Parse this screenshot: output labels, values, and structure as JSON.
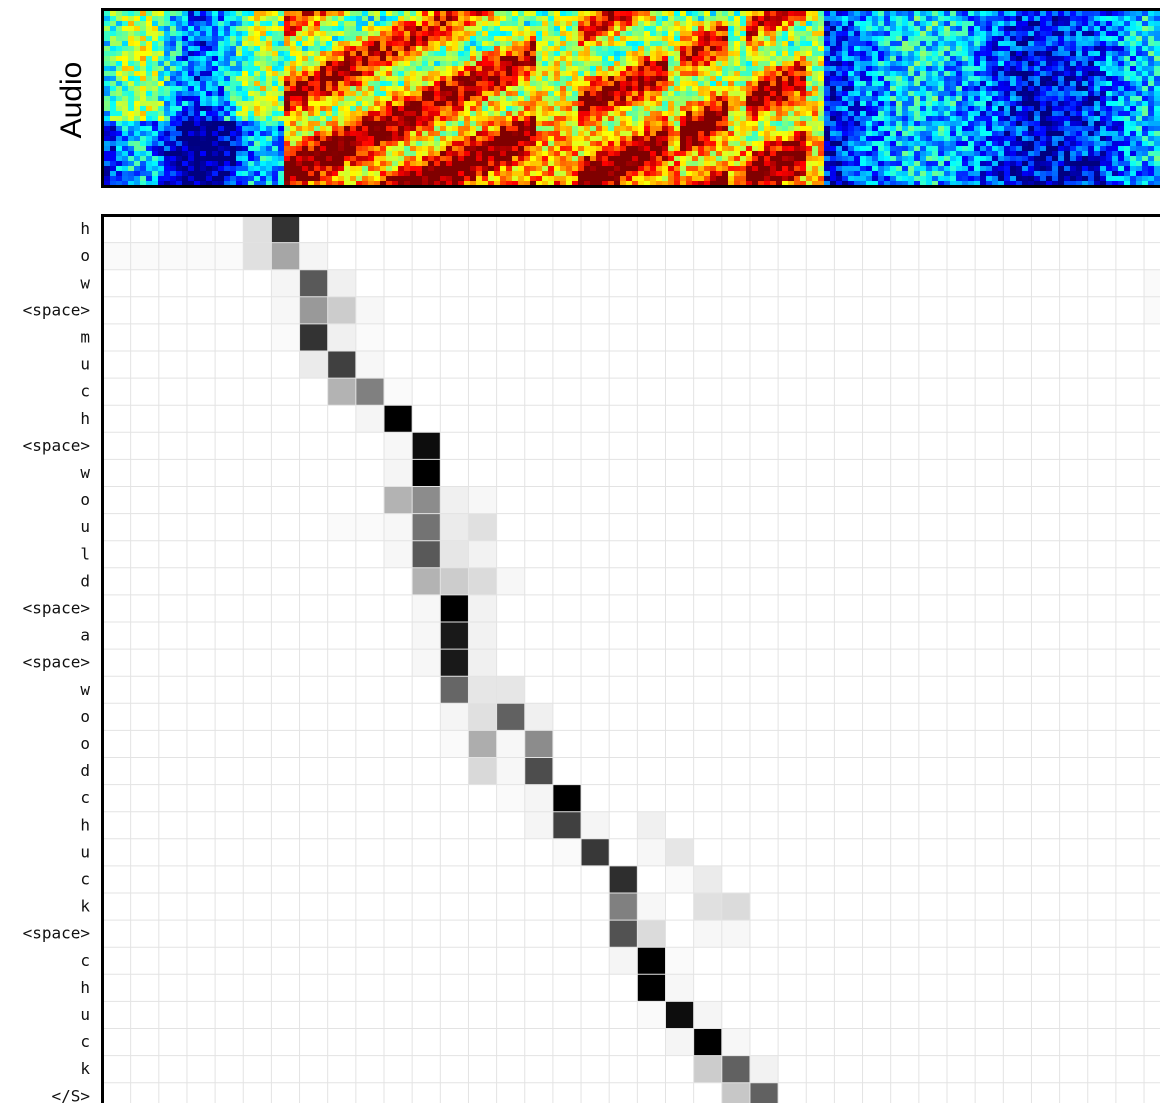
{
  "panel_label": "Audio",
  "chart_data": {
    "type": "heatmap",
    "title": "",
    "xlabel": "",
    "ylabel": "",
    "grid": true,
    "n_columns": 38,
    "rows": [
      "h",
      "o",
      "w",
      "<space>",
      "m",
      "u",
      "c",
      "h",
      "<space>",
      "w",
      "o",
      "u",
      "l",
      "d",
      "<space>",
      "a",
      "<space>",
      "w",
      "o",
      "o",
      "d",
      "c",
      "h",
      "u",
      "c",
      "k",
      "<space>",
      "c",
      "h",
      "u",
      "c",
      "k",
      "</S>"
    ],
    "cells": [
      [
        [
          5,
          0.12
        ],
        [
          6,
          0.8
        ]
      ],
      [
        [
          0,
          0.02
        ],
        [
          1,
          0.02
        ],
        [
          2,
          0.02
        ],
        [
          3,
          0.02
        ],
        [
          4,
          0.02
        ],
        [
          5,
          0.12
        ],
        [
          6,
          0.35
        ],
        [
          7,
          0.04
        ]
      ],
      [
        [
          6,
          0.04
        ],
        [
          7,
          0.65
        ],
        [
          8,
          0.06
        ],
        [
          37,
          0.02
        ]
      ],
      [
        [
          6,
          0.03
        ],
        [
          7,
          0.4
        ],
        [
          8,
          0.2
        ],
        [
          9,
          0.03
        ],
        [
          37,
          0.02
        ]
      ],
      [
        [
          6,
          0.02
        ],
        [
          7,
          0.8
        ],
        [
          8,
          0.06
        ],
        [
          9,
          0.02
        ]
      ],
      [
        [
          7,
          0.08
        ],
        [
          8,
          0.75
        ],
        [
          9,
          0.03
        ]
      ],
      [
        [
          8,
          0.3
        ],
        [
          9,
          0.5
        ],
        [
          10,
          0.02
        ]
      ],
      [
        [
          9,
          0.04
        ],
        [
          10,
          1.0
        ]
      ],
      [
        [
          10,
          0.03
        ],
        [
          11,
          0.95
        ]
      ],
      [
        [
          10,
          0.04
        ],
        [
          11,
          1.0
        ]
      ],
      [
        [
          10,
          0.3
        ],
        [
          11,
          0.45
        ],
        [
          12,
          0.06
        ],
        [
          13,
          0.03
        ]
      ],
      [
        [
          8,
          0.02
        ],
        [
          9,
          0.02
        ],
        [
          10,
          0.03
        ],
        [
          11,
          0.55
        ],
        [
          12,
          0.08
        ],
        [
          13,
          0.12
        ]
      ],
      [
        [
          10,
          0.03
        ],
        [
          11,
          0.65
        ],
        [
          12,
          0.1
        ],
        [
          13,
          0.05
        ]
      ],
      [
        [
          11,
          0.3
        ],
        [
          12,
          0.2
        ],
        [
          13,
          0.14
        ],
        [
          14,
          0.03
        ]
      ],
      [
        [
          11,
          0.03
        ],
        [
          12,
          1.0
        ],
        [
          13,
          0.05
        ]
      ],
      [
        [
          11,
          0.03
        ],
        [
          12,
          0.9
        ],
        [
          13,
          0.05
        ]
      ],
      [
        [
          11,
          0.03
        ],
        [
          12,
          0.9
        ],
        [
          13,
          0.06
        ]
      ],
      [
        [
          12,
          0.6
        ],
        [
          13,
          0.1
        ],
        [
          14,
          0.1
        ]
      ],
      [
        [
          12,
          0.04
        ],
        [
          13,
          0.12
        ],
        [
          14,
          0.62
        ],
        [
          15,
          0.06
        ]
      ],
      [
        [
          12,
          0.02
        ],
        [
          13,
          0.32
        ],
        [
          14,
          0.03
        ],
        [
          15,
          0.45
        ]
      ],
      [
        [
          13,
          0.15
        ],
        [
          14,
          0.03
        ],
        [
          15,
          0.7
        ]
      ],
      [
        [
          14,
          0.02
        ],
        [
          15,
          0.04
        ],
        [
          16,
          1.0
        ]
      ],
      [
        [
          15,
          0.04
        ],
        [
          16,
          0.75
        ],
        [
          17,
          0.04
        ],
        [
          19,
          0.06
        ]
      ],
      [
        [
          16,
          0.02
        ],
        [
          17,
          0.78
        ],
        [
          19,
          0.03
        ],
        [
          20,
          0.1
        ]
      ],
      [
        [
          18,
          0.82
        ],
        [
          20,
          0.02
        ],
        [
          21,
          0.08
        ]
      ],
      [
        [
          18,
          0.5
        ],
        [
          19,
          0.03
        ],
        [
          21,
          0.12
        ],
        [
          22,
          0.14
        ]
      ],
      [
        [
          18,
          0.68
        ],
        [
          19,
          0.14
        ],
        [
          21,
          0.03
        ],
        [
          22,
          0.03
        ]
      ],
      [
        [
          18,
          0.04
        ],
        [
          19,
          1.0
        ],
        [
          20,
          0.02
        ]
      ],
      [
        [
          19,
          1.0
        ],
        [
          20,
          0.03
        ]
      ],
      [
        [
          19,
          0.02
        ],
        [
          20,
          0.95
        ],
        [
          21,
          0.04
        ]
      ],
      [
        [
          20,
          0.04
        ],
        [
          21,
          1.0
        ],
        [
          22,
          0.03
        ]
      ],
      [
        [
          21,
          0.2
        ],
        [
          22,
          0.62
        ],
        [
          23,
          0.05
        ]
      ],
      [
        [
          22,
          0.22
        ],
        [
          23,
          0.62
        ]
      ]
    ]
  }
}
